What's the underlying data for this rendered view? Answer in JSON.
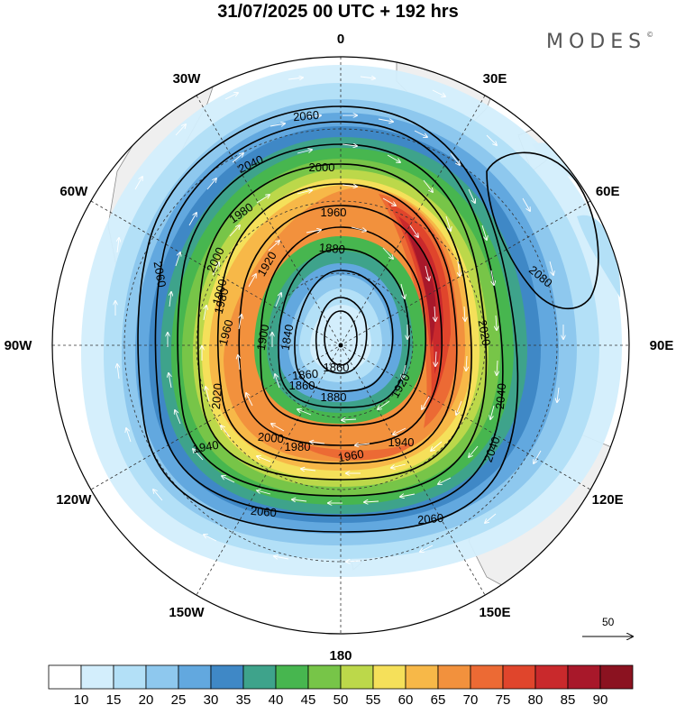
{
  "title": "31/07/2025  00 UTC  + 192 hrs",
  "logo": "MODES",
  "logo_mark": "©",
  "meridian_labels": [
    {
      "label": "0",
      "lon": 0
    },
    {
      "label": "30E",
      "lon": 30
    },
    {
      "label": "60E",
      "lon": 60
    },
    {
      "label": "90E",
      "lon": 90
    },
    {
      "label": "120E",
      "lon": 120
    },
    {
      "label": "150E",
      "lon": 150
    },
    {
      "label": "180",
      "lon": 180
    },
    {
      "label": "150W",
      "lon": -150
    },
    {
      "label": "120W",
      "lon": -120
    },
    {
      "label": "90W",
      "lon": -90
    },
    {
      "label": "60W",
      "lon": -60
    },
    {
      "label": "30W",
      "lon": -30
    }
  ],
  "contour_labels": [
    "2060",
    "2040",
    "2000",
    "1980",
    "1960",
    "1920",
    "1900",
    "1880",
    "1860",
    "1840",
    "1860",
    "1880",
    "1900",
    "1920",
    "1940",
    "1960",
    "1980",
    "2000",
    "2020",
    "2040",
    "2060",
    "2060",
    "2060",
    "2080",
    "2020",
    "1960",
    "1980",
    "2000",
    "1940",
    "2040",
    "1860"
  ],
  "colorbar": {
    "colors": [
      "#ffffff",
      "#d3eefc",
      "#b3e0f7",
      "#8ec8ee",
      "#62a8df",
      "#3f88c6",
      "#3ea38b",
      "#47b64f",
      "#77c548",
      "#bcd84a",
      "#f5e05a",
      "#f7b848",
      "#f2913d",
      "#ec6a34",
      "#e0452c",
      "#c9292c",
      "#a8182a",
      "#8b1220"
    ],
    "tick_labels": [
      "10",
      "15",
      "20",
      "25",
      "30",
      "35",
      "40",
      "45",
      "50",
      "55",
      "60",
      "65",
      "70",
      "75",
      "80",
      "85",
      "90"
    ]
  },
  "reference_vector": {
    "label": "50"
  }
}
